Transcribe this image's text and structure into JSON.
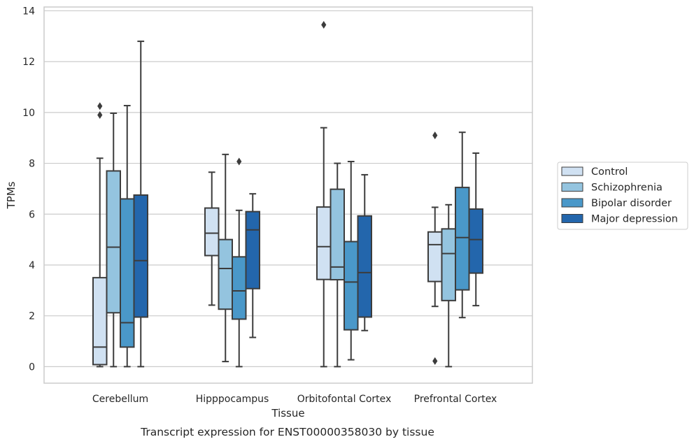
{
  "chart_data": {
    "type": "box",
    "title": "",
    "caption": "Transcript expression for ENST00000358030 by tissue",
    "xlabel": "Tissue",
    "ylabel": "TPMs",
    "ylim": [
      -0.65,
      14.15
    ],
    "yticks": [
      0,
      2,
      4,
      6,
      8,
      10,
      12,
      14
    ],
    "grid": "horizontal",
    "legend_position": "right",
    "categories": [
      "Cerebellum",
      "Hipppocampus",
      "Orbitofontal Cortex",
      "Prefrontal Cortex"
    ],
    "series": [
      {
        "name": "Control",
        "color": "#d0e1f2",
        "boxes": [
          {
            "whislo": 0.0,
            "q1": 0.08,
            "med": 0.77,
            "q3": 3.5,
            "whishi": 8.2,
            "fliers": [
              9.9,
              10.25
            ]
          },
          {
            "whislo": 2.42,
            "q1": 4.37,
            "med": 5.25,
            "q3": 6.24,
            "whishi": 7.65,
            "fliers": []
          },
          {
            "whislo": 0.0,
            "q1": 3.43,
            "med": 4.72,
            "q3": 6.28,
            "whishi": 9.4,
            "fliers": [
              13.45
            ]
          },
          {
            "whislo": 2.37,
            "q1": 3.35,
            "med": 4.8,
            "q3": 5.3,
            "whishi": 6.27,
            "fliers": [
              9.1,
              0.22
            ]
          }
        ]
      },
      {
        "name": "Schizophrenia",
        "color": "#94c4df",
        "boxes": [
          {
            "whislo": 0.0,
            "q1": 2.12,
            "med": 4.7,
            "q3": 7.7,
            "whishi": 9.97,
            "fliers": []
          },
          {
            "whislo": 0.2,
            "q1": 2.26,
            "med": 3.86,
            "q3": 5.0,
            "whishi": 8.35,
            "fliers": []
          },
          {
            "whislo": 0.0,
            "q1": 3.42,
            "med": 3.92,
            "q3": 6.98,
            "whishi": 8.0,
            "fliers": []
          },
          {
            "whislo": 0.0,
            "q1": 2.6,
            "med": 4.45,
            "q3": 5.42,
            "whishi": 6.37,
            "fliers": []
          }
        ]
      },
      {
        "name": "Bipolar disorder",
        "color": "#4a98c9",
        "boxes": [
          {
            "whislo": 0.0,
            "q1": 0.77,
            "med": 1.73,
            "q3": 6.6,
            "whishi": 10.27,
            "fliers": []
          },
          {
            "whislo": 0.0,
            "q1": 1.87,
            "med": 2.98,
            "q3": 4.32,
            "whishi": 6.15,
            "fliers": [
              8.07
            ]
          },
          {
            "whislo": 0.27,
            "q1": 1.45,
            "med": 3.33,
            "q3": 4.92,
            "whishi": 8.07,
            "fliers": []
          },
          {
            "whislo": 1.93,
            "q1": 3.02,
            "med": 5.08,
            "q3": 7.05,
            "whishi": 9.22,
            "fliers": []
          }
        ]
      },
      {
        "name": "Major depression",
        "color": "#2366ac",
        "boxes": [
          {
            "whislo": 0.0,
            "q1": 1.95,
            "med": 4.17,
            "q3": 6.75,
            "whishi": 12.8,
            "fliers": []
          },
          {
            "whislo": 1.15,
            "q1": 3.07,
            "med": 5.38,
            "q3": 6.1,
            "whishi": 6.8,
            "fliers": []
          },
          {
            "whislo": 1.42,
            "q1": 1.95,
            "med": 3.7,
            "q3": 5.93,
            "whishi": 7.55,
            "fliers": []
          },
          {
            "whislo": 2.4,
            "q1": 3.68,
            "med": 5.0,
            "q3": 6.2,
            "whishi": 8.4,
            "fliers": []
          }
        ]
      }
    ]
  }
}
